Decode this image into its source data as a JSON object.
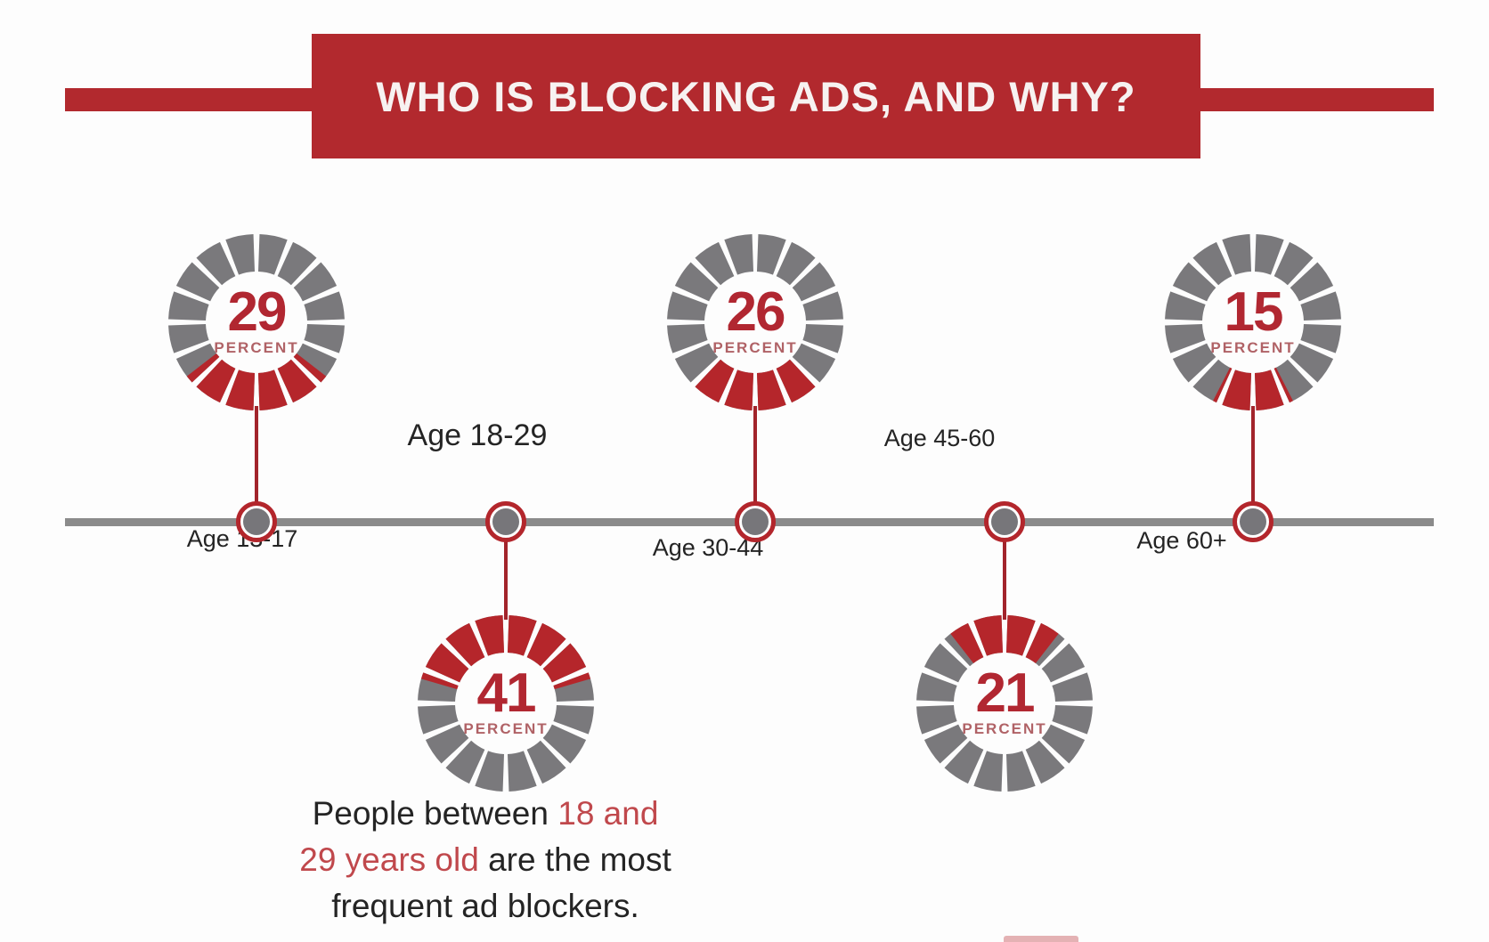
{
  "title_banner": {
    "text": "WHO IS BLOCKING ADS, AND WHY?",
    "bg_color": "#b2292e",
    "text_color": "#f7f2f1"
  },
  "timeline": {
    "line_color": "#8b8b8b",
    "node_ring_color": "#b3262c",
    "node_dot_color": "#77767a",
    "connector_color": "#a2242b"
  },
  "donut_style": {
    "segments_per_ring": 16,
    "filled_color": "#b5262b",
    "empty_color": "#7a797c",
    "value_color": "#b12731",
    "unit_color": "#b06266"
  },
  "groups": [
    {
      "age_label": "Age 13-17",
      "percent": 29,
      "unit_label": "PERCENT",
      "chart_position": "above",
      "label_position": "below"
    },
    {
      "age_label": "Age 18-29",
      "percent": 41,
      "unit_label": "PERCENT",
      "chart_position": "below",
      "label_position": "above"
    },
    {
      "age_label": "Age 30-44",
      "percent": 26,
      "unit_label": "PERCENT",
      "chart_position": "above",
      "label_position": "below"
    },
    {
      "age_label": "Age 45-60",
      "percent": 21,
      "unit_label": "PERCENT",
      "chart_position": "below",
      "label_position": "above"
    },
    {
      "age_label": "Age 60+",
      "percent": 15,
      "unit_label": "PERCENT",
      "chart_position": "above",
      "label_position": "below"
    }
  ],
  "caption": {
    "lines": [
      {
        "parts": [
          {
            "text": "People between ",
            "emphasis": false
          },
          {
            "text": "18 and",
            "emphasis": true
          }
        ]
      },
      {
        "parts": [
          {
            "text": "29 years old",
            "emphasis": true
          },
          {
            "text": " are the most",
            "emphasis": false
          }
        ]
      },
      {
        "parts": [
          {
            "text": "frequent ad blockers.",
            "emphasis": false
          }
        ]
      }
    ],
    "emphasis_color": "#c0484c",
    "text_color": "#242424"
  },
  "chart_data": {
    "type": "pie",
    "variant": "segmented-donut-gauges-on-timeline",
    "title": "WHO IS BLOCKING ADS, AND WHY?",
    "categories": [
      "Age 13-17",
      "Age 18-29",
      "Age 30-44",
      "Age 45-60",
      "Age 60+"
    ],
    "values": [
      29,
      41,
      26,
      21,
      15
    ],
    "unit": "percent",
    "segments_per_ring": 16,
    "gauge_fill_anchor": "arc centered on the side facing the timeline",
    "highlight_category": "Age 18-29",
    "annotation": "People between 18 and 29 years old are the most frequent ad blockers.",
    "legend_position": "none",
    "colors": {
      "filled": "#b5262b",
      "empty": "#7a797c"
    }
  }
}
